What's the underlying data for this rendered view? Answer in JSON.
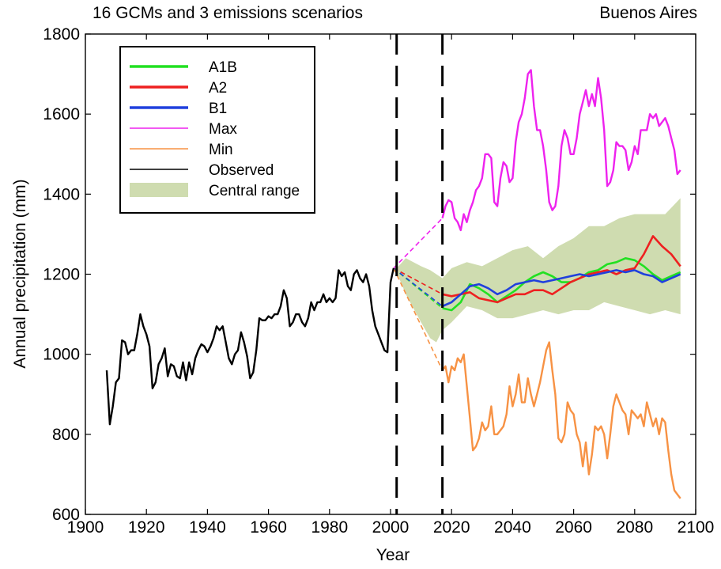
{
  "chart_data": {
    "type": "line",
    "title_left": "16 GCMs and 3 emissions scenarios",
    "title_right": "Buenos Aires",
    "xlabel": "Year",
    "ylabel": "Annual precipitation (mm)",
    "xlim": [
      1900,
      2100
    ],
    "ylim": [
      600,
      1800
    ],
    "x_ticks": [
      1900,
      1920,
      1940,
      1960,
      1980,
      2000,
      2020,
      2040,
      2060,
      2080,
      2100
    ],
    "y_ticks": [
      600,
      800,
      1000,
      1200,
      1400,
      1600,
      1800
    ],
    "grid": false,
    "legend_position": "top-left",
    "vertical_dashed_lines": [
      2002,
      2017
    ],
    "legend": [
      {
        "label": "A1B",
        "color": "#22e022",
        "style": "thick"
      },
      {
        "label": "A2",
        "color": "#ee2020",
        "style": "thick"
      },
      {
        "label": "B1",
        "color": "#2040dd",
        "style": "thick"
      },
      {
        "label": "Max",
        "color": "#ee22ee",
        "style": "thin"
      },
      {
        "label": "Min",
        "color": "#f79244",
        "style": "thin"
      },
      {
        "label": "Observed",
        "color": "#000000",
        "style": "thin"
      },
      {
        "label": "Central range",
        "color": "#cfdcb0",
        "style": "band"
      }
    ],
    "observed": {
      "x": [
        1907,
        1908,
        1909,
        1910,
        1911,
        1912,
        1913,
        1914,
        1915,
        1916,
        1917,
        1918,
        1919,
        1920,
        1921,
        1922,
        1923,
        1924,
        1925,
        1926,
        1927,
        1928,
        1929,
        1930,
        1931,
        1932,
        1933,
        1934,
        1935,
        1936,
        1937,
        1938,
        1939,
        1940,
        1941,
        1942,
        1943,
        1944,
        1945,
        1946,
        1947,
        1948,
        1949,
        1950,
        1951,
        1952,
        1953,
        1954,
        1955,
        1956,
        1957,
        1958,
        1959,
        1960,
        1961,
        1962,
        1963,
        1964,
        1965,
        1966,
        1967,
        1968,
        1969,
        1970,
        1971,
        1972,
        1973,
        1974,
        1975,
        1976,
        1977,
        1978,
        1979,
        1980,
        1981,
        1982,
        1983,
        1984,
        1985,
        1986,
        1987,
        1988,
        1989,
        1990,
        1991,
        1992,
        1993,
        1994,
        1995,
        1996,
        1997,
        1998,
        1999,
        2000,
        2001
      ],
      "y": [
        960,
        825,
        870,
        930,
        940,
        1035,
        1030,
        1000,
        1010,
        1010,
        1050,
        1100,
        1070,
        1050,
        1020,
        915,
        930,
        975,
        990,
        1015,
        945,
        975,
        970,
        945,
        940,
        980,
        935,
        980,
        950,
        990,
        1010,
        1025,
        1020,
        1005,
        1020,
        1040,
        1070,
        1060,
        1070,
        1030,
        990,
        975,
        1000,
        1010,
        1055,
        1030,
        995,
        940,
        955,
        1010,
        1090,
        1085,
        1085,
        1095,
        1090,
        1100,
        1100,
        1120,
        1160,
        1140,
        1070,
        1080,
        1100,
        1100,
        1080,
        1070,
        1090,
        1130,
        1110,
        1130,
        1130,
        1150,
        1130,
        1140,
        1130,
        1140,
        1210,
        1195,
        1205,
        1170,
        1160,
        1200,
        1210,
        1190,
        1180,
        1200,
        1170,
        1110,
        1070,
        1050,
        1030,
        1010,
        1005,
        1180,
        1215
      ]
    },
    "central_range": {
      "x": [
        2002,
        2005,
        2010,
        2013,
        2015,
        2017,
        2020,
        2025,
        2030,
        2035,
        2040,
        2045,
        2050,
        2055,
        2060,
        2065,
        2070,
        2075,
        2080,
        2085,
        2090,
        2095
      ],
      "lower": [
        1205,
        1150,
        1080,
        1040,
        1030,
        1060,
        1080,
        1120,
        1110,
        1090,
        1090,
        1100,
        1110,
        1100,
        1110,
        1110,
        1130,
        1120,
        1110,
        1100,
        1110,
        1100
      ],
      "upper": [
        1215,
        1240,
        1220,
        1210,
        1200,
        1190,
        1215,
        1230,
        1220,
        1240,
        1260,
        1270,
        1240,
        1270,
        1290,
        1320,
        1320,
        1340,
        1350,
        1350,
        1350,
        1390
      ]
    },
    "max": {
      "x": [
        2017,
        2018,
        2019,
        2020,
        2021,
        2022,
        2023,
        2024,
        2025,
        2026,
        2027,
        2028,
        2029,
        2030,
        2031,
        2032,
        2033,
        2034,
        2035,
        2036,
        2037,
        2038,
        2039,
        2040,
        2041,
        2042,
        2043,
        2044,
        2045,
        2046,
        2047,
        2048,
        2049,
        2050,
        2051,
        2052,
        2053,
        2054,
        2055,
        2056,
        2057,
        2058,
        2059,
        2060,
        2061,
        2062,
        2063,
        2064,
        2065,
        2066,
        2067,
        2068,
        2069,
        2070,
        2071,
        2072,
        2073,
        2074,
        2075,
        2076,
        2077,
        2078,
        2079,
        2080,
        2081,
        2082,
        2083,
        2084,
        2085,
        2086,
        2087,
        2088,
        2089,
        2090,
        2091,
        2092,
        2093,
        2094,
        2095
      ],
      "y": [
        1340,
        1370,
        1385,
        1380,
        1340,
        1330,
        1310,
        1350,
        1330,
        1360,
        1380,
        1410,
        1420,
        1440,
        1500,
        1500,
        1490,
        1380,
        1370,
        1440,
        1480,
        1470,
        1430,
        1440,
        1530,
        1580,
        1600,
        1640,
        1700,
        1710,
        1620,
        1560,
        1560,
        1520,
        1460,
        1380,
        1360,
        1370,
        1420,
        1520,
        1560,
        1540,
        1500,
        1500,
        1540,
        1600,
        1630,
        1660,
        1620,
        1650,
        1620,
        1690,
        1640,
        1560,
        1420,
        1430,
        1460,
        1530,
        1520,
        1520,
        1510,
        1460,
        1480,
        1520,
        1500,
        1560,
        1560,
        1560,
        1600,
        1590,
        1600,
        1570,
        1580,
        1590,
        1570,
        1540,
        1510,
        1450,
        1460
      ]
    },
    "min": {
      "x": [
        2017,
        2018,
        2019,
        2020,
        2021,
        2022,
        2023,
        2024,
        2025,
        2026,
        2027,
        2028,
        2029,
        2030,
        2031,
        2032,
        2033,
        2034,
        2035,
        2036,
        2037,
        2038,
        2039,
        2040,
        2041,
        2042,
        2043,
        2044,
        2045,
        2046,
        2047,
        2048,
        2049,
        2050,
        2051,
        2052,
        2053,
        2054,
        2055,
        2056,
        2057,
        2058,
        2059,
        2060,
        2061,
        2062,
        2063,
        2064,
        2065,
        2066,
        2067,
        2068,
        2069,
        2070,
        2071,
        2072,
        2073,
        2074,
        2075,
        2076,
        2077,
        2078,
        2079,
        2080,
        2081,
        2082,
        2083,
        2084,
        2085,
        2086,
        2087,
        2088,
        2089,
        2090,
        2091,
        2092,
        2093,
        2094,
        2095
      ],
      "y": [
        960,
        970,
        930,
        970,
        960,
        990,
        980,
        1000,
        920,
        840,
        760,
        770,
        790,
        830,
        810,
        820,
        870,
        800,
        800,
        810,
        820,
        850,
        920,
        870,
        900,
        950,
        880,
        880,
        940,
        900,
        870,
        900,
        930,
        970,
        1010,
        1030,
        960,
        900,
        790,
        780,
        800,
        880,
        860,
        850,
        800,
        780,
        720,
        780,
        700,
        750,
        820,
        810,
        820,
        800,
        740,
        800,
        870,
        900,
        880,
        860,
        850,
        800,
        860,
        850,
        840,
        850,
        820,
        880,
        850,
        820,
        840,
        800,
        840,
        830,
        760,
        700,
        660,
        650,
        640
      ]
    },
    "series": [
      {
        "name": "A1B",
        "x": [
          2017,
          2020,
          2023,
          2026,
          2029,
          2032,
          2035,
          2038,
          2041,
          2044,
          2047,
          2050,
          2053,
          2056,
          2059,
          2062,
          2065,
          2068,
          2071,
          2074,
          2077,
          2080,
          2083,
          2086,
          2089,
          2092,
          2095
        ],
        "y": [
          1115,
          1110,
          1130,
          1175,
          1165,
          1150,
          1130,
          1145,
          1160,
          1180,
          1195,
          1205,
          1195,
          1180,
          1180,
          1190,
          1205,
          1210,
          1225,
          1230,
          1240,
          1235,
          1220,
          1200,
          1185,
          1195,
          1205
        ]
      },
      {
        "name": "A2",
        "x": [
          2017,
          2020,
          2023,
          2026,
          2029,
          2032,
          2035,
          2038,
          2041,
          2044,
          2047,
          2050,
          2053,
          2056,
          2059,
          2062,
          2065,
          2068,
          2071,
          2074,
          2077,
          2080,
          2083,
          2086,
          2089,
          2092,
          2095
        ],
        "y": [
          1150,
          1145,
          1150,
          1155,
          1140,
          1135,
          1130,
          1140,
          1150,
          1150,
          1160,
          1160,
          1150,
          1165,
          1180,
          1190,
          1200,
          1205,
          1210,
          1200,
          1210,
          1215,
          1250,
          1295,
          1270,
          1250,
          1220
        ]
      },
      {
        "name": "B1",
        "x": [
          2017,
          2020,
          2023,
          2026,
          2029,
          2032,
          2035,
          2038,
          2041,
          2044,
          2047,
          2050,
          2053,
          2056,
          2059,
          2062,
          2065,
          2068,
          2071,
          2074,
          2077,
          2080,
          2083,
          2086,
          2089,
          2092,
          2095
        ],
        "y": [
          1120,
          1130,
          1150,
          1170,
          1175,
          1165,
          1150,
          1160,
          1175,
          1180,
          1185,
          1180,
          1185,
          1190,
          1195,
          1200,
          1195,
          1200,
          1205,
          1210,
          1205,
          1210,
          1200,
          1195,
          1180,
          1190,
          1200
        ]
      }
    ],
    "dashed_connectors": [
      {
        "name": "Max",
        "x": [
          2001,
          2017
        ],
        "y": [
          1215,
          1340
        ]
      },
      {
        "name": "A1B",
        "x": [
          2001,
          2017
        ],
        "y": [
          1215,
          1115
        ]
      },
      {
        "name": "A2",
        "x": [
          2001,
          2017
        ],
        "y": [
          1215,
          1150
        ]
      },
      {
        "name": "B1",
        "x": [
          2001,
          2017
        ],
        "y": [
          1215,
          1120
        ]
      },
      {
        "name": "Min",
        "x": [
          2001,
          2017
        ],
        "y": [
          1215,
          960
        ]
      }
    ]
  }
}
